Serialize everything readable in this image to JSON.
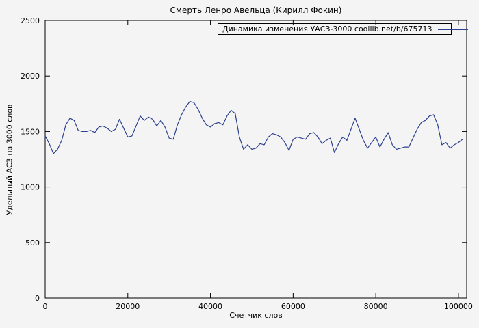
{
  "chart_data": {
    "type": "line",
    "title": "Смерть Ленро Авельца (Кирилл Фокин)",
    "xlabel": "Счетчик слов",
    "ylabel": "Удельный АСЗ на 3000 слов",
    "line_color": "#2b3f8f",
    "xlim": [
      0,
      102000
    ],
    "ylim": [
      0,
      2500
    ],
    "x_ticks": [
      0,
      20000,
      40000,
      60000,
      80000,
      100000
    ],
    "y_ticks": [
      0,
      500,
      1000,
      1500,
      2000,
      2500
    ],
    "grid": false,
    "legend_position": "top-center-boxed",
    "series": [
      {
        "name": "Динамика изменения УАСЗ-3000 coollib.net/b/675713",
        "x": [
          0,
          1000,
          2000,
          3000,
          4000,
          5000,
          6000,
          7000,
          8000,
          9000,
          10000,
          11000,
          12000,
          13000,
          14000,
          15000,
          16000,
          17000,
          18000,
          19000,
          20000,
          21000,
          22000,
          23000,
          24000,
          25000,
          26000,
          27000,
          28000,
          29000,
          30000,
          31000,
          32000,
          33000,
          34000,
          35000,
          36000,
          37000,
          38000,
          39000,
          40000,
          41000,
          42000,
          43000,
          44000,
          45000,
          46000,
          47000,
          48000,
          49000,
          50000,
          51000,
          52000,
          53000,
          54000,
          55000,
          56000,
          57000,
          58000,
          59000,
          60000,
          61000,
          62000,
          63000,
          64000,
          65000,
          66000,
          67000,
          68000,
          69000,
          70000,
          71000,
          72000,
          73000,
          74000,
          75000,
          76000,
          77000,
          78000,
          79000,
          80000,
          81000,
          82000,
          83000,
          84000,
          85000,
          86000,
          87000,
          88000,
          89000,
          90000,
          91000,
          92000,
          93000,
          94000,
          95000,
          96000,
          97000,
          98000,
          99000,
          100000,
          101000
        ],
        "y": [
          1460,
          1390,
          1300,
          1340,
          1420,
          1560,
          1620,
          1600,
          1510,
          1500,
          1500,
          1510,
          1490,
          1540,
          1550,
          1530,
          1500,
          1520,
          1610,
          1530,
          1450,
          1460,
          1550,
          1640,
          1600,
          1630,
          1610,
          1550,
          1600,
          1540,
          1440,
          1430,
          1560,
          1650,
          1720,
          1770,
          1760,
          1700,
          1620,
          1560,
          1540,
          1570,
          1580,
          1560,
          1640,
          1690,
          1660,
          1450,
          1340,
          1380,
          1340,
          1350,
          1390,
          1380,
          1450,
          1480,
          1470,
          1450,
          1400,
          1330,
          1430,
          1450,
          1440,
          1430,
          1480,
          1490,
          1450,
          1390,
          1420,
          1440,
          1310,
          1390,
          1450,
          1420,
          1520,
          1620,
          1520,
          1420,
          1350,
          1400,
          1450,
          1360,
          1430,
          1490,
          1380,
          1340,
          1350,
          1360,
          1360,
          1440,
          1520,
          1580,
          1600,
          1640,
          1650,
          1560,
          1380,
          1400,
          1350,
          1380,
          1400,
          1430
        ]
      }
    ]
  }
}
